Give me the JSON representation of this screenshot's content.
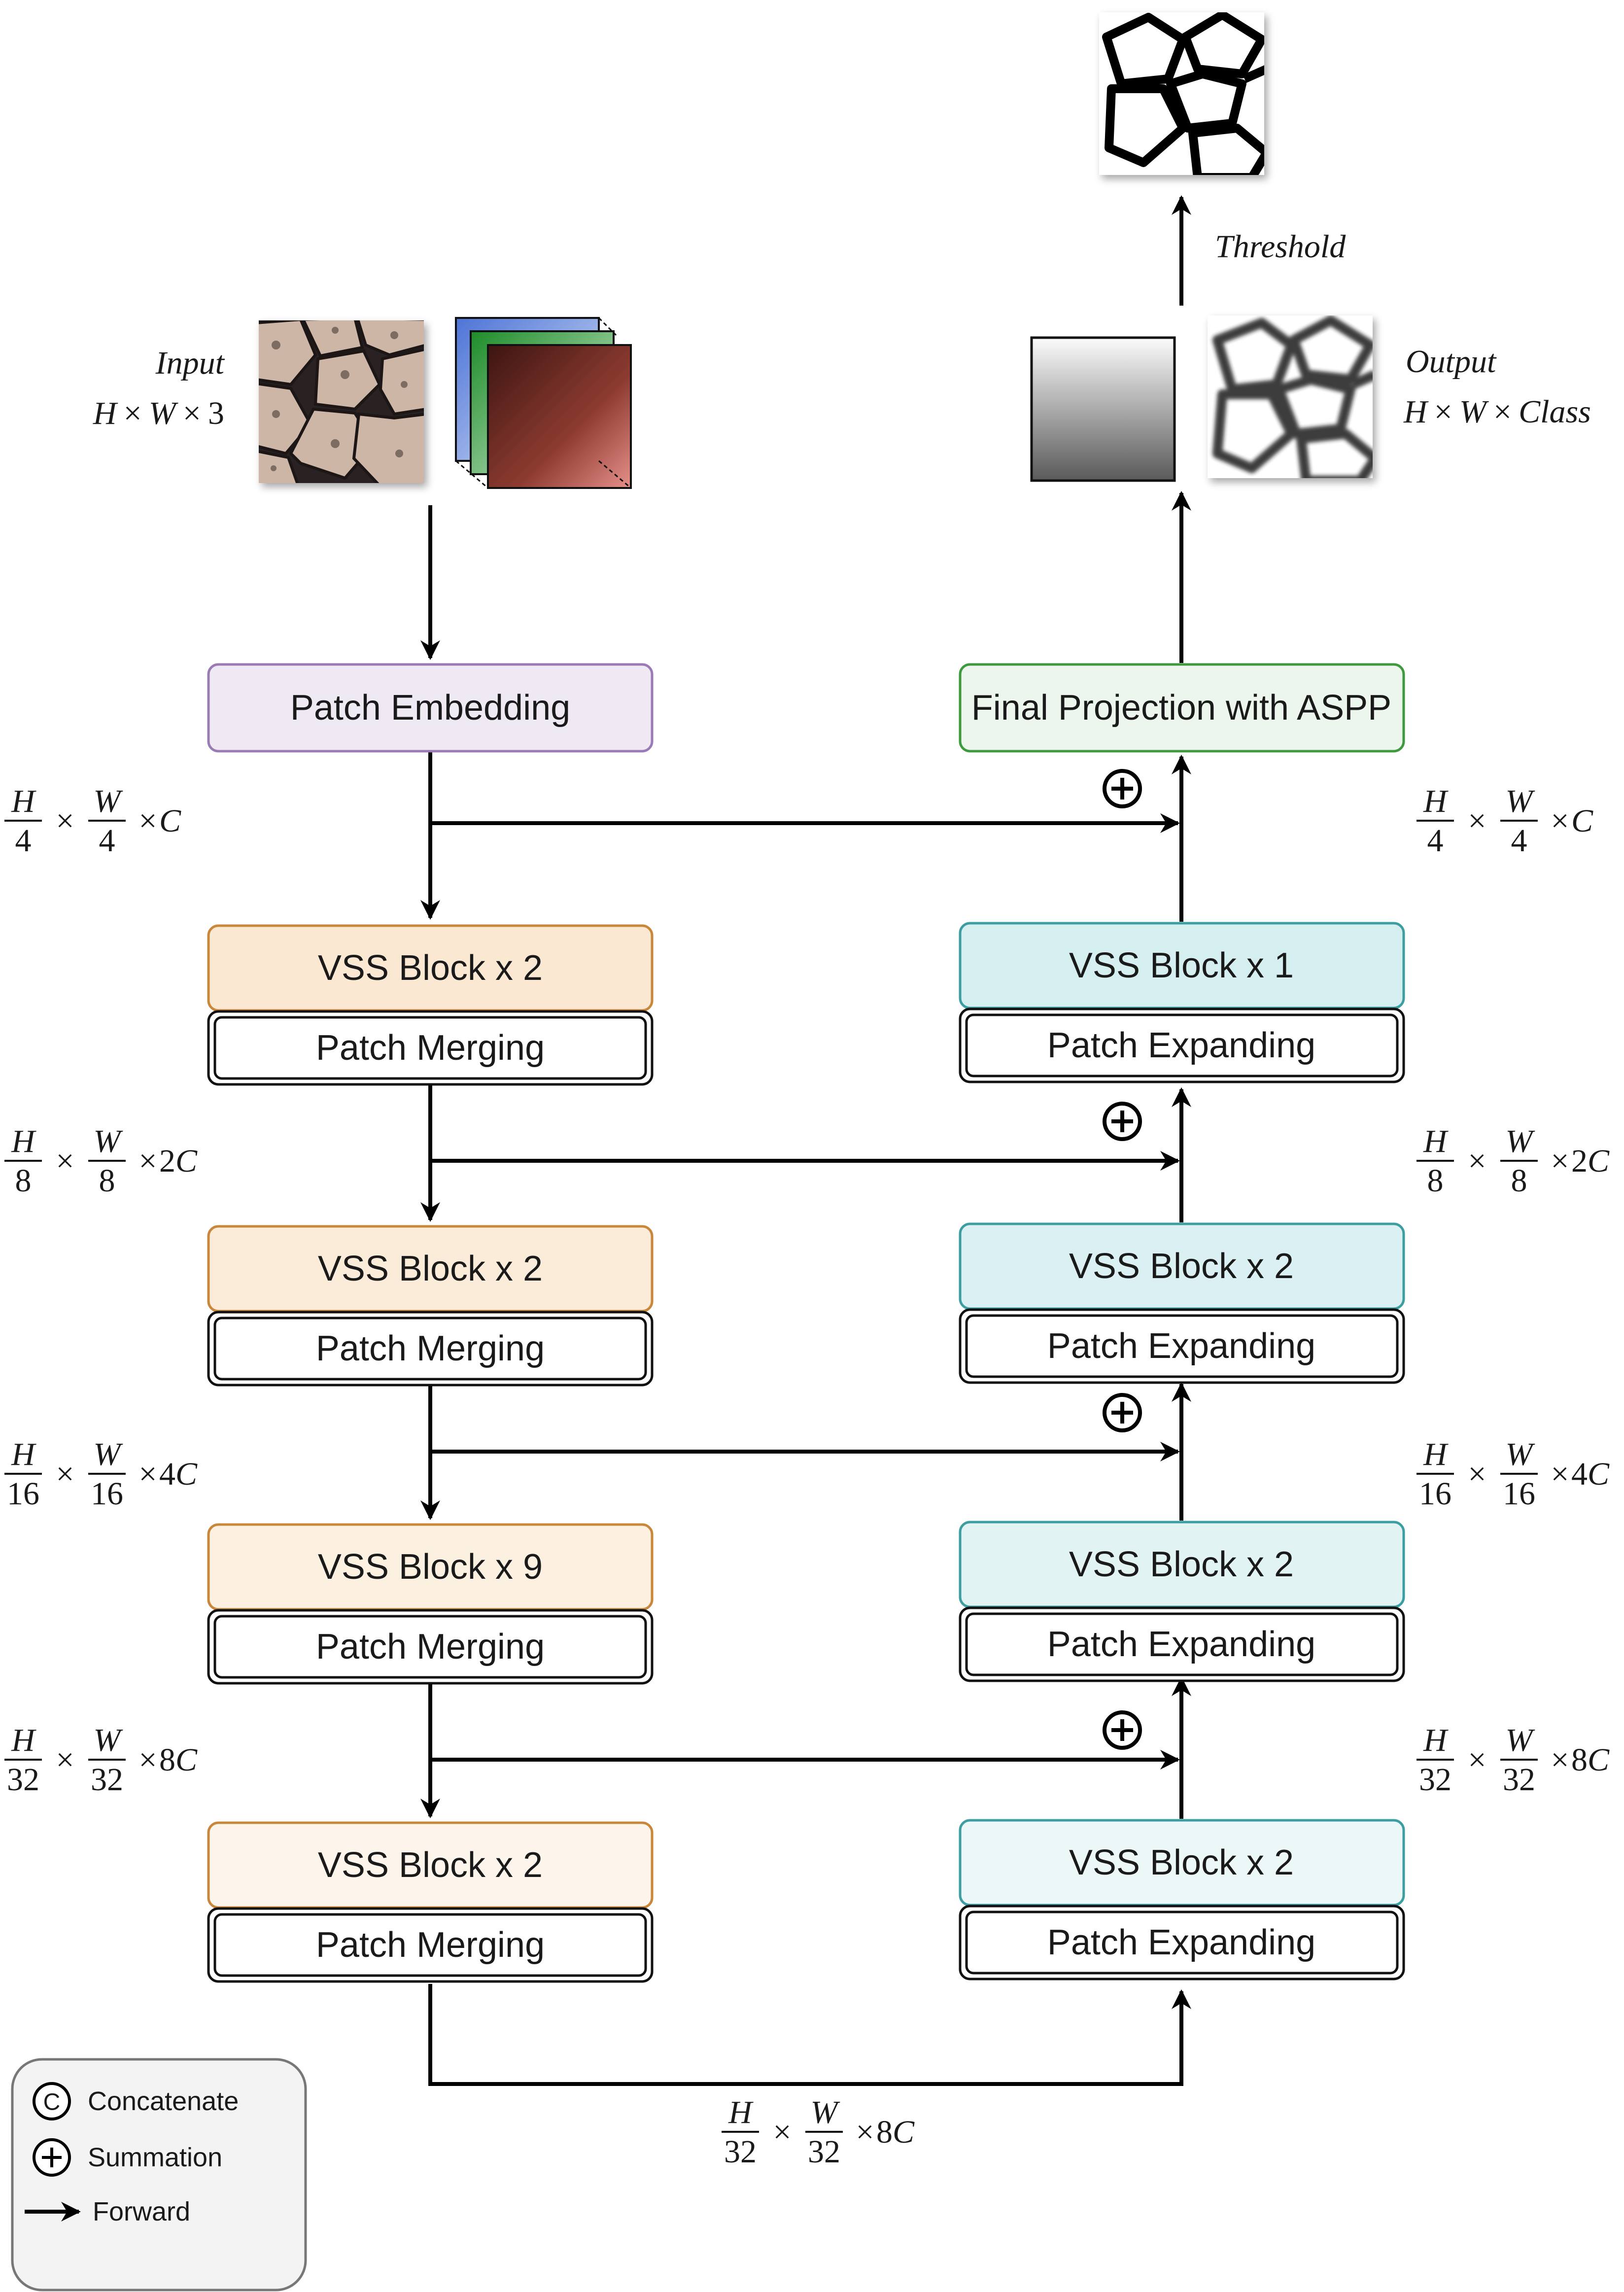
{
  "input": {
    "label": "Input",
    "dims": [
      "H",
      "W",
      "3"
    ]
  },
  "output": {
    "label": "Output",
    "dims": [
      "H",
      "W",
      "Class"
    ]
  },
  "threshold_label": "Threshold",
  "encoder": {
    "patch_embedding": "Patch Embedding",
    "stages": [
      {
        "block": "VSS Block x 2",
        "op": "Patch Merging"
      },
      {
        "block": "VSS Block x 2",
        "op": "Patch Merging"
      },
      {
        "block": "VSS Block x 9",
        "op": "Patch Merging"
      },
      {
        "block": "VSS Block x 2",
        "op": "Patch Merging"
      }
    ]
  },
  "decoder": {
    "final_projection": "Final Projection with ASPP",
    "stages": [
      {
        "block": "VSS Block x 1",
        "op": "Patch Expanding"
      },
      {
        "block": "VSS Block x 2",
        "op": "Patch Expanding"
      },
      {
        "block": "VSS Block x 2",
        "op": "Patch Expanding"
      },
      {
        "block": "VSS Block x 2",
        "op": "Patch Expanding"
      }
    ]
  },
  "scales": [
    {
      "den": "4",
      "ch": "C"
    },
    {
      "den": "8",
      "ch": "2C"
    },
    {
      "den": "16",
      "ch": "4C"
    },
    {
      "den": "32",
      "ch": "8C"
    }
  ],
  "bottleneck_scale": {
    "den": "32",
    "ch": "8C"
  },
  "frac_num_h": "H",
  "frac_num_w": "W",
  "times": "×",
  "legend": {
    "concatenate_symbol": "C",
    "concatenate": "Concatenate",
    "summation": "Summation",
    "forward": "Forward"
  },
  "colors": {
    "purple_fill": "#efe9f3",
    "purple_stroke": "#9b7bb5",
    "green_fill": "#edf6ec",
    "green_stroke": "#3f9a3f",
    "orange_stroke": "#c8873a",
    "teal_stroke": "#3d9ea2"
  }
}
